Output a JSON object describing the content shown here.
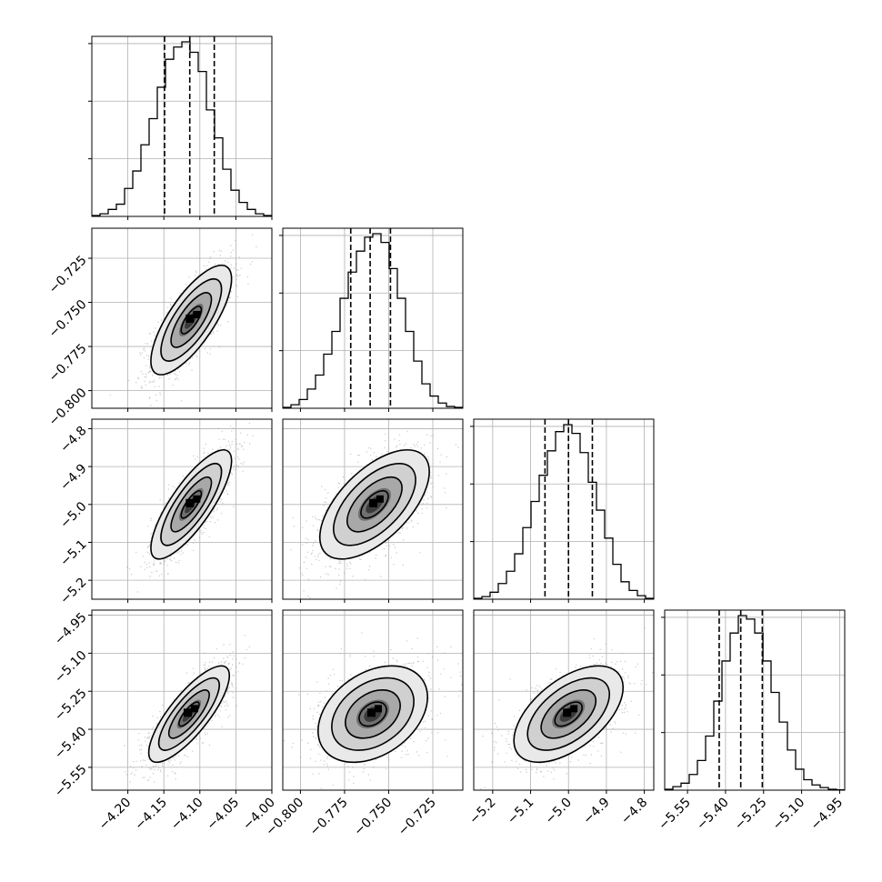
{
  "chart_data": {
    "type": "corner",
    "grid": true,
    "parameters": [
      {
        "range": [
          -4.25,
          -4.0
        ],
        "ticks": [
          -4.2,
          -4.15,
          -4.1,
          -4.05,
          -4.0
        ],
        "tick_labels": [
          "−4.20",
          "−4.15",
          "−4.10",
          "−4.05",
          "−4.00"
        ],
        "quantiles": [
          -4.149,
          -4.114,
          -4.08
        ],
        "histogram": [
          0.005,
          0.015,
          0.04,
          0.07,
          0.16,
          0.26,
          0.41,
          0.56,
          0.74,
          0.9,
          0.97,
          1.0,
          0.94,
          0.83,
          0.61,
          0.45,
          0.27,
          0.15,
          0.08,
          0.04,
          0.015,
          0.005
        ]
      },
      {
        "range": [
          -0.81,
          -0.708
        ],
        "ticks": [
          -0.8,
          -0.775,
          -0.75,
          -0.725
        ],
        "tick_labels": [
          "−0.800",
          "−0.775",
          "−0.750",
          "−0.725"
        ],
        "quantiles": [
          -0.7715,
          -0.7605,
          -0.749
        ],
        "histogram": [
          0.005,
          0.02,
          0.05,
          0.11,
          0.19,
          0.31,
          0.44,
          0.63,
          0.78,
          0.9,
          0.98,
          1.0,
          0.95,
          0.8,
          0.63,
          0.44,
          0.27,
          0.14,
          0.07,
          0.03,
          0.01,
          0.005
        ]
      },
      {
        "range": [
          -5.25,
          -4.775
        ],
        "ticks": [
          -5.2,
          -5.1,
          -5.0,
          -4.9,
          -4.8
        ],
        "tick_labels": [
          "−5.2",
          "−5.1",
          "−5.0",
          "−4.9",
          "−4.8"
        ],
        "quantiles": [
          -5.062,
          -5.0,
          -4.937
        ],
        "histogram": [
          0.005,
          0.015,
          0.04,
          0.09,
          0.16,
          0.26,
          0.41,
          0.56,
          0.71,
          0.85,
          0.96,
          1.0,
          0.95,
          0.84,
          0.67,
          0.51,
          0.35,
          0.2,
          0.1,
          0.05,
          0.02,
          0.005
        ]
      },
      {
        "range": [
          -5.64,
          -4.93
        ],
        "ticks": [
          -5.55,
          -5.4,
          -5.25,
          -5.1,
          -4.95
        ],
        "tick_labels": [
          "−5.55",
          "−5.40",
          "−5.25",
          "−5.10",
          "−4.95"
        ],
        "quantiles": [
          -5.425,
          -5.34,
          -5.255
        ],
        "histogram": [
          0.005,
          0.02,
          0.04,
          0.09,
          0.17,
          0.31,
          0.51,
          0.74,
          0.9,
          1.0,
          0.98,
          0.9,
          0.74,
          0.56,
          0.39,
          0.23,
          0.12,
          0.06,
          0.03,
          0.015,
          0.005,
          0.002
        ]
      }
    ],
    "pairs": [
      {
        "x": 0,
        "y": 1,
        "center": [
          -4.112,
          -0.76
        ],
        "sd": [
          0.028,
          0.0155
        ],
        "corr": 0.75
      },
      {
        "x": 0,
        "y": 2,
        "center": [
          -4.112,
          -5.0
        ],
        "sd": [
          0.028,
          0.072
        ],
        "corr": 0.8
      },
      {
        "x": 1,
        "y": 2,
        "center": [
          -0.758,
          -5.0
        ],
        "sd": [
          0.0155,
          0.072
        ],
        "corr": 0.6
      },
      {
        "x": 0,
        "y": 3,
        "center": [
          -4.115,
          -5.34
        ],
        "sd": [
          0.028,
          0.095
        ],
        "corr": 0.8
      },
      {
        "x": 1,
        "y": 3,
        "center": [
          -0.759,
          -5.34
        ],
        "sd": [
          0.0155,
          0.095
        ],
        "corr": 0.35
      },
      {
        "x": 2,
        "y": 3,
        "center": [
          -5.0,
          -5.34
        ],
        "sd": [
          0.072,
          0.095
        ],
        "corr": 0.55
      }
    ],
    "contour_levels_sigma": [
      0.5,
      1.0,
      1.5,
      2.0
    ]
  }
}
